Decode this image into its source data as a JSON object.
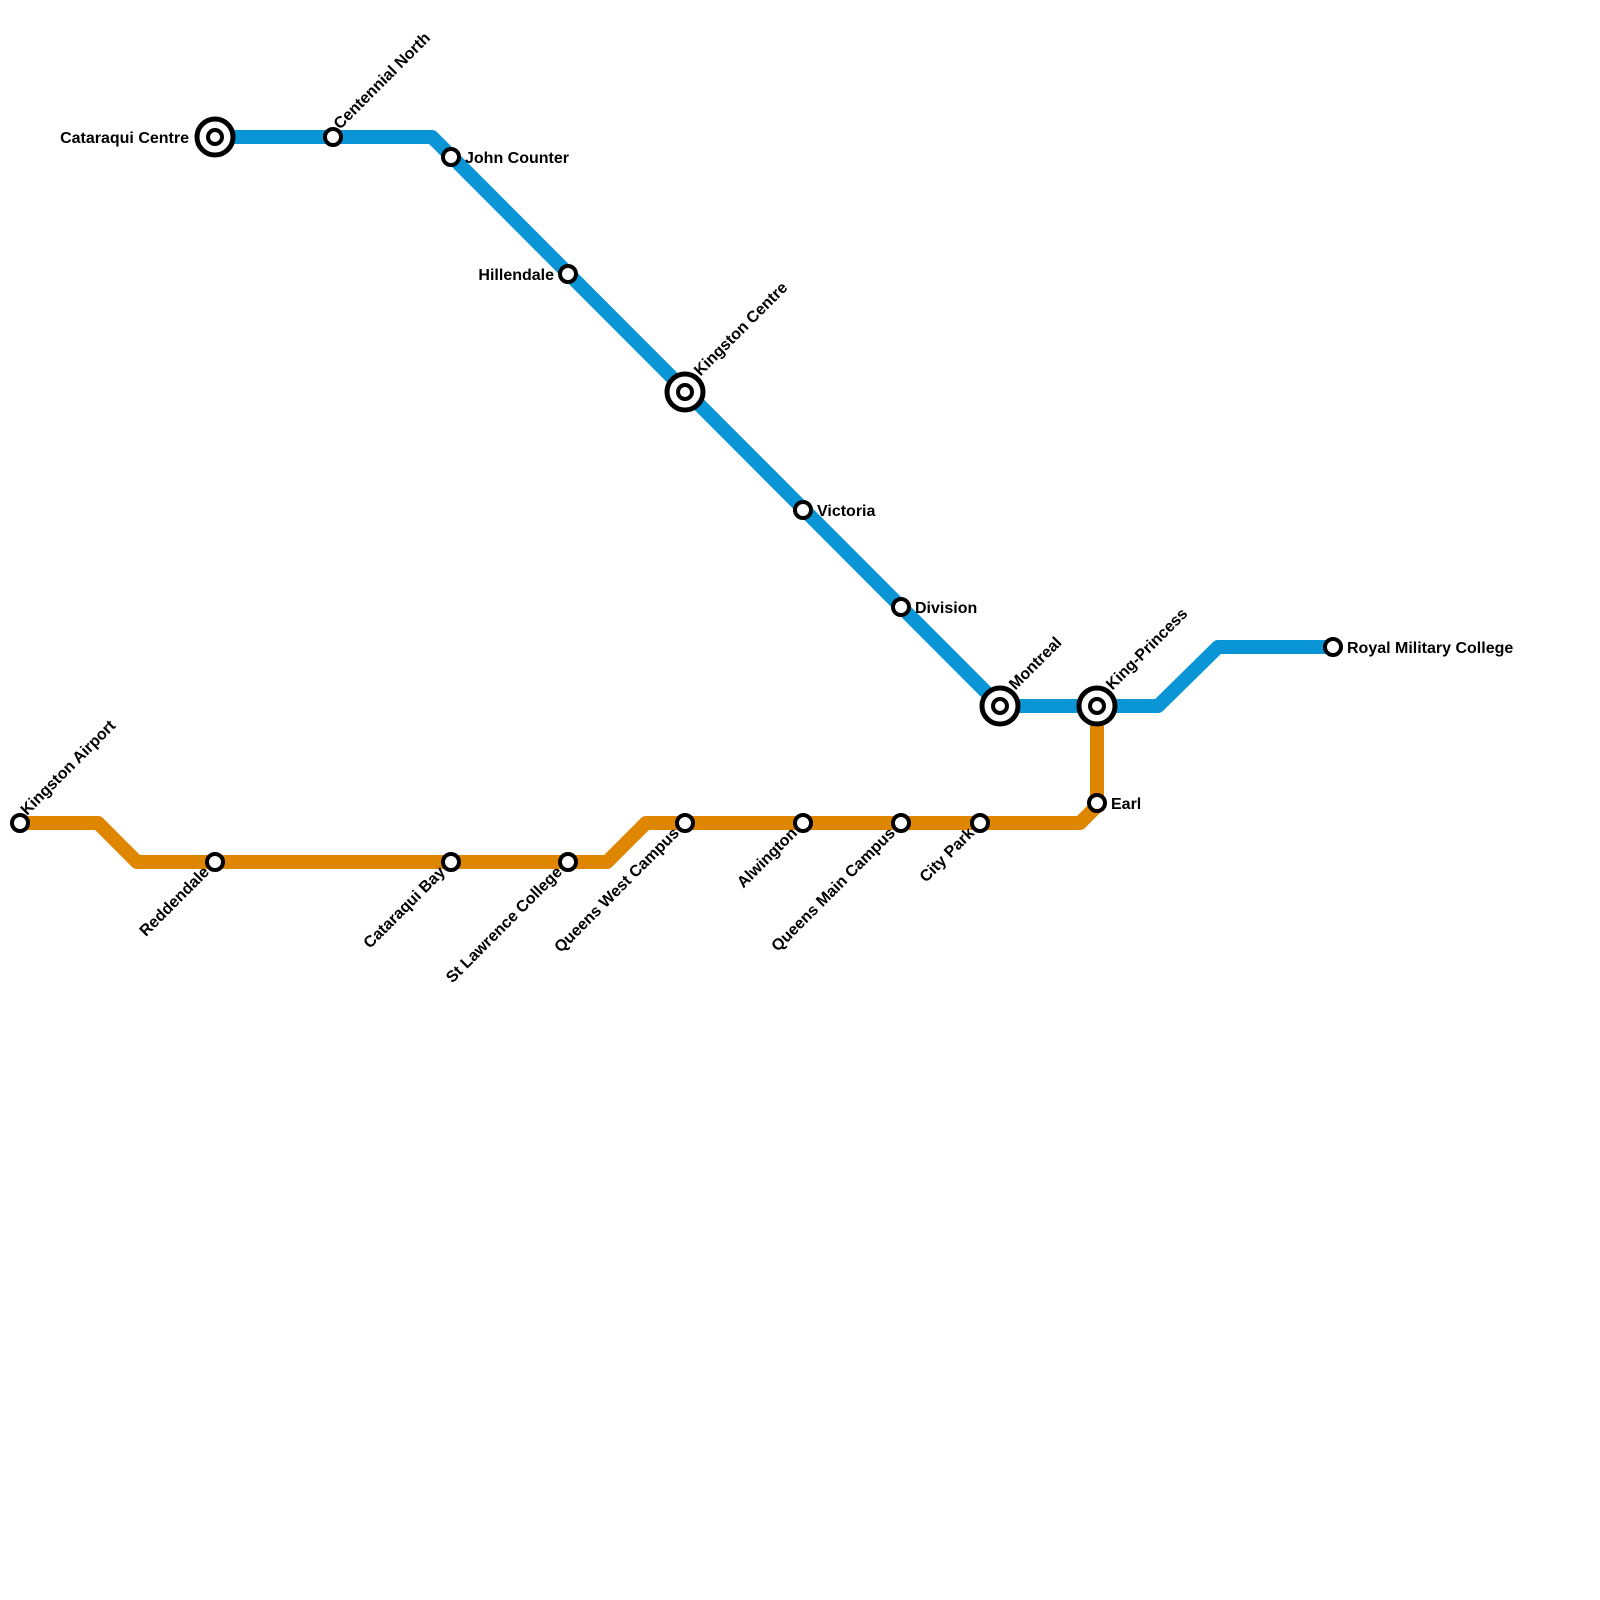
{
  "lines": [
    {
      "name": "blue-line",
      "color": "#0a96d6"
    },
    {
      "name": "orange-line",
      "color": "#df8600"
    }
  ],
  "stations": [
    {
      "name": "Cataraqui Centre",
      "line": "blue",
      "type": "interchange",
      "label": "left"
    },
    {
      "name": "Centennial North",
      "line": "blue",
      "type": "stop",
      "label": "upper-right"
    },
    {
      "name": "John Counter",
      "line": "blue",
      "type": "stop",
      "label": "right"
    },
    {
      "name": "Hillendale",
      "line": "blue",
      "type": "stop",
      "label": "left"
    },
    {
      "name": "Kingston Centre",
      "line": "blue",
      "type": "interchange",
      "label": "upper-right"
    },
    {
      "name": "Victoria",
      "line": "blue",
      "type": "stop",
      "label": "right"
    },
    {
      "name": "Division",
      "line": "blue",
      "type": "stop",
      "label": "right"
    },
    {
      "name": "Montreal",
      "line": "blue",
      "type": "interchange",
      "label": "upper-right"
    },
    {
      "name": "King-Princess",
      "line": "blue/orange",
      "type": "interchange",
      "label": "upper-right"
    },
    {
      "name": "Royal Military College",
      "line": "blue",
      "type": "stop",
      "label": "right"
    },
    {
      "name": "Kingston Airport",
      "line": "orange",
      "type": "stop",
      "label": "upper-right"
    },
    {
      "name": "Reddendale",
      "line": "orange",
      "type": "stop",
      "label": "lower-left"
    },
    {
      "name": "Cataraqui Bay",
      "line": "orange",
      "type": "stop",
      "label": "lower-left"
    },
    {
      "name": "St Lawrence College",
      "line": "orange",
      "type": "stop",
      "label": "lower-left"
    },
    {
      "name": "Queens West Campus",
      "line": "orange",
      "type": "stop",
      "label": "lower-left"
    },
    {
      "name": "Alwington",
      "line": "orange",
      "type": "stop",
      "label": "lower-left"
    },
    {
      "name": "Queens Main Campus",
      "line": "orange",
      "type": "stop",
      "label": "lower-left"
    },
    {
      "name": "City Park",
      "line": "orange",
      "type": "stop",
      "label": "lower-left"
    },
    {
      "name": "Earl",
      "line": "orange",
      "type": "stop",
      "label": "right"
    }
  ]
}
